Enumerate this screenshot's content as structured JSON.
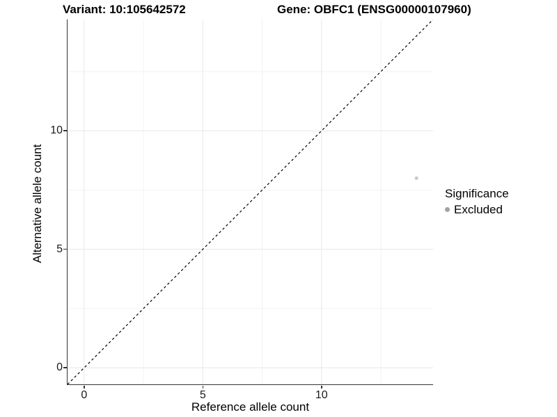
{
  "chart_data": {
    "type": "scatter",
    "titles": [
      "Variant: 10:105642572",
      "Gene: OBFC1 (ENSG00000107960)"
    ],
    "xlabel": "Reference allele count",
    "ylabel": "Alternative allele count",
    "xlim": [
      -0.7,
      14.7
    ],
    "ylim": [
      -0.7,
      14.7
    ],
    "x_major_ticks": [
      0,
      5,
      10
    ],
    "y_major_ticks": [
      0,
      5,
      10
    ],
    "x_minor_ticks": [
      2.5,
      7.5,
      12.5
    ],
    "y_minor_ticks": [
      2.5,
      7.5,
      12.5
    ],
    "grid": "major and minor gridlines on, white panel background",
    "reference_line": {
      "kind": "identity y=x",
      "style": "dashed",
      "color": "#000000"
    },
    "series": [
      {
        "name": "Excluded",
        "color": "#c9c9c9",
        "points": [
          {
            "x": 14,
            "y": 8
          }
        ]
      }
    ],
    "legend": {
      "title": "Significance",
      "position": "right",
      "items": [
        {
          "label": "Excluded",
          "swatch_color": "#a2a2a2"
        }
      ]
    }
  },
  "style": {
    "grid_major_color": "#e7e7e7",
    "grid_minor_color": "#f2f2f2",
    "axis_color": "#333333",
    "point_radius": 2.5,
    "legend_dot_radius": 3.5
  }
}
